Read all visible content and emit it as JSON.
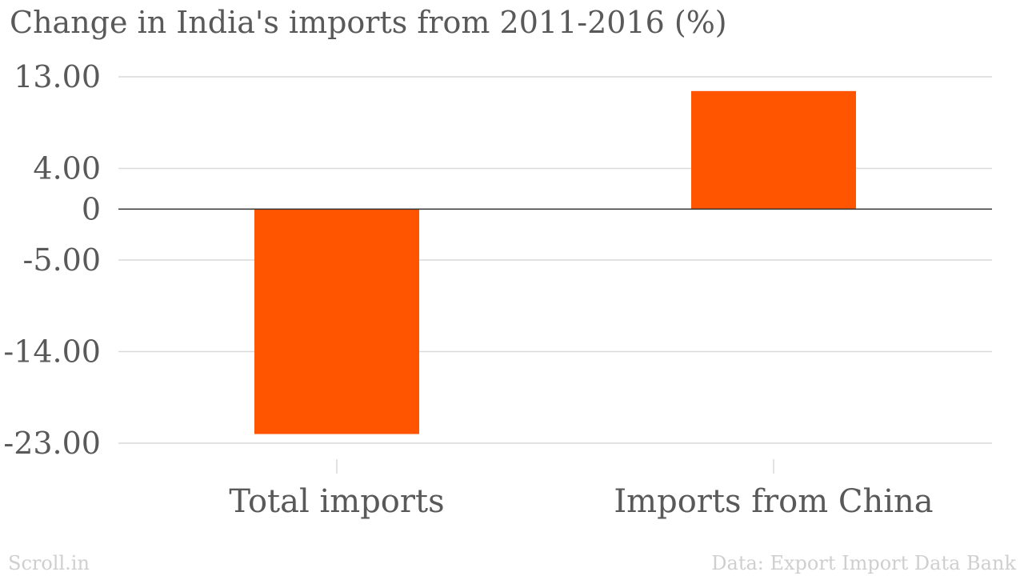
{
  "chart_data": {
    "type": "bar",
    "title": "Change in India's imports from 2011-2016 (%)",
    "categories": [
      "Total imports",
      "Imports from China"
    ],
    "values": [
      -22.1,
      11.6
    ],
    "yticks": [
      13,
      4,
      0,
      -5,
      -14,
      -23
    ],
    "ytick_labels": [
      "13.00",
      "4.00",
      "0",
      "-5.00",
      "-14.00",
      "-23.00"
    ],
    "ylim": [
      -23,
      13
    ],
    "xlabel": "",
    "ylabel": "",
    "grid": true,
    "legend": "none",
    "bar_color": "#ff5400"
  },
  "footer": {
    "credit": "Scroll.in",
    "source": "Data: Export Import Data Bank"
  }
}
